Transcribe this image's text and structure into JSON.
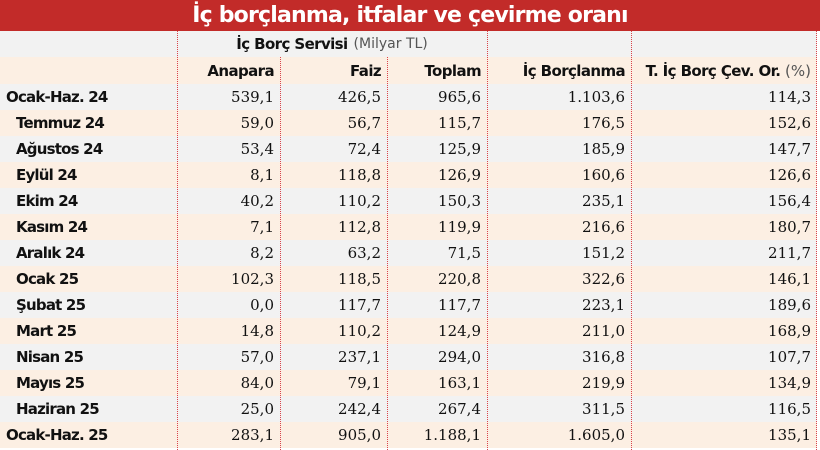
{
  "title": "İç borçlanma, itfalar ve çevirme oranı",
  "header": {
    "group_label": "İç Borç Servisi",
    "group_unit": "(Milyar TL)",
    "columns": [
      "Anapara",
      "Faiz",
      "Toplam",
      "İç Borçlanma",
      "T. İç Borç Çev. Or."
    ],
    "last_col_unit": "(%)"
  },
  "rows": [
    {
      "label": "Ocak-Haz. 24",
      "summary": true,
      "anapara": "539,1",
      "faiz": "426,5",
      "toplam": "965,6",
      "borclanma": "1.103,6",
      "oran": "114,3"
    },
    {
      "label": "Temmuz 24",
      "summary": false,
      "anapara": "59,0",
      "faiz": "56,7",
      "toplam": "115,7",
      "borclanma": "176,5",
      "oran": "152,6"
    },
    {
      "label": "Ağustos 24",
      "summary": false,
      "anapara": "53,4",
      "faiz": "72,4",
      "toplam": "125,9",
      "borclanma": "185,9",
      "oran": "147,7"
    },
    {
      "label": "Eylül 24",
      "summary": false,
      "anapara": "8,1",
      "faiz": "118,8",
      "toplam": "126,9",
      "borclanma": "160,6",
      "oran": "126,6"
    },
    {
      "label": "Ekim 24",
      "summary": false,
      "anapara": "40,2",
      "faiz": "110,2",
      "toplam": "150,3",
      "borclanma": "235,1",
      "oran": "156,4"
    },
    {
      "label": "Kasım 24",
      "summary": false,
      "anapara": "7,1",
      "faiz": "112,8",
      "toplam": "119,9",
      "borclanma": "216,6",
      "oran": "180,7"
    },
    {
      "label": "Aralık 24",
      "summary": false,
      "anapara": "8,2",
      "faiz": "63,2",
      "toplam": "71,5",
      "borclanma": "151,2",
      "oran": "211,7"
    },
    {
      "label": "Ocak 25",
      "summary": false,
      "anapara": "102,3",
      "faiz": "118,5",
      "toplam": "220,8",
      "borclanma": "322,6",
      "oran": "146,1"
    },
    {
      "label": "Şubat 25",
      "summary": false,
      "anapara": "0,0",
      "faiz": "117,7",
      "toplam": "117,7",
      "borclanma": "223,1",
      "oran": "189,6"
    },
    {
      "label": "Mart 25",
      "summary": false,
      "anapara": "14,8",
      "faiz": "110,2",
      "toplam": "124,9",
      "borclanma": "211,0",
      "oran": "168,9"
    },
    {
      "label": "Nisan 25",
      "summary": false,
      "anapara": "57,0",
      "faiz": "237,1",
      "toplam": "294,0",
      "borclanma": "316,8",
      "oran": "107,7"
    },
    {
      "label": "Mayıs 25",
      "summary": false,
      "anapara": "84,0",
      "faiz": "79,1",
      "toplam": "163,1",
      "borclanma": "219,9",
      "oran": "134,9"
    },
    {
      "label": "Haziran 25",
      "summary": false,
      "anapara": "25,0",
      "faiz": "242,4",
      "toplam": "267,4",
      "borclanma": "311,5",
      "oran": "116,5"
    },
    {
      "label": "Ocak-Haz. 25",
      "summary": true,
      "anapara": "283,1",
      "faiz": "905,0",
      "toplam": "1.188,1",
      "borclanma": "1.605,0",
      "oran": "135,1"
    }
  ],
  "colors": {
    "title_bg": "#c22b29",
    "row_gray": "#f2f2f2",
    "row_peach": "#fcefe3",
    "divider": "#d9434a"
  }
}
